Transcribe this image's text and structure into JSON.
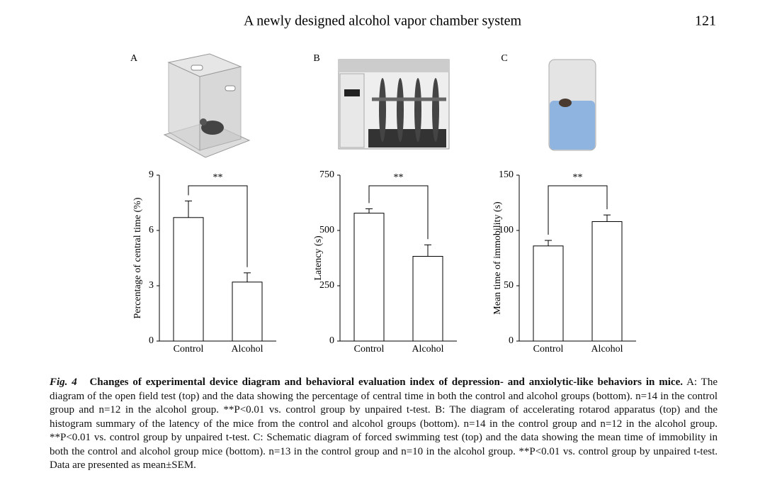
{
  "header": {
    "title": "A newly designed alcohol vapor chamber system",
    "page": "121"
  },
  "chart_data": [
    {
      "type": "bar",
      "panel": "A",
      "ylabel": "Percentage of central time (%)",
      "categories": [
        "Control",
        "Alcohol"
      ],
      "values": [
        6.7,
        3.2
      ],
      "errors": [
        0.9,
        0.5
      ],
      "ylim": [
        0,
        9
      ],
      "yticks": [
        0,
        3,
        6,
        9
      ],
      "annotation": "**",
      "color": "#ffffff"
    },
    {
      "type": "bar",
      "panel": "B",
      "ylabel": "Latency (s)",
      "categories": [
        "Control",
        "Alcohol"
      ],
      "values": [
        578,
        383
      ],
      "errors": [
        20,
        52
      ],
      "ylim": [
        0,
        750
      ],
      "yticks": [
        0,
        250,
        500,
        750
      ],
      "annotation": "**",
      "color": "#ffffff"
    },
    {
      "type": "bar",
      "panel": "C",
      "ylabel": "Mean time of immobility (s)",
      "categories": [
        "Control",
        "Alcohol"
      ],
      "values": [
        86,
        108
      ],
      "errors": [
        5,
        6
      ],
      "ylim": [
        0,
        150
      ],
      "yticks": [
        0,
        50,
        100,
        150
      ],
      "annotation": "**",
      "color": "#ffffff"
    }
  ],
  "caption": {
    "label": "Fig. 4",
    "title": "Changes of experimental device diagram and behavioral evaluation index of depression- and anxiolytic-like behaviors in mice.",
    "text": "A: The diagram of the open field test (top) and the data showing the percentage of central time in both the control and alcohol groups (bottom). n=14 in the control group and n=12 in the alcohol group. **P<0.01 vs. control group by unpaired t-test. B: The diagram of accelerating rotarod apparatus (top) and the histogram summary of the latency of the mice from the control and alcohol groups (bottom). n=14 in the control group and n=12 in the alcohol group. **P<0.01 vs. control group by unpaired t-test. C: Schematic diagram of forced swimming test (top) and the data showing the mean time of immobility in both the control and alcohol group mice (bottom). n=13 in the control group and n=10 in the alcohol group. **P<0.01 vs. control group by unpaired t-test. Data are presented as mean±SEM."
  }
}
